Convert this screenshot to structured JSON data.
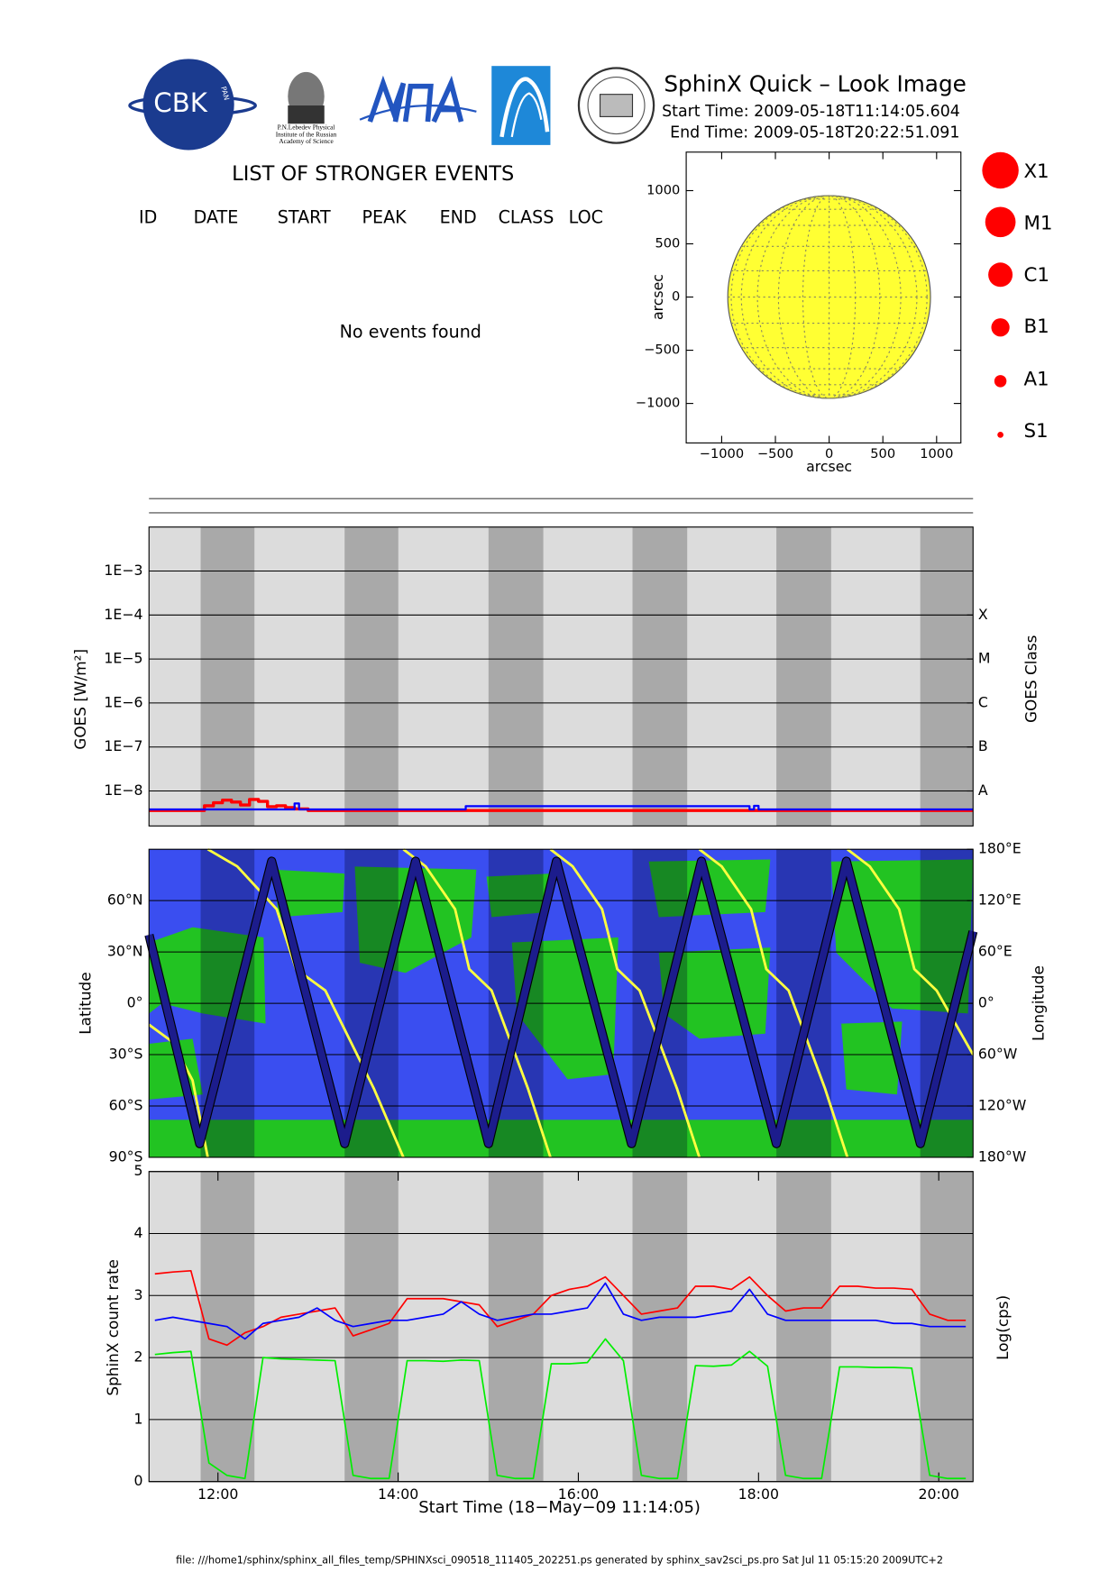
{
  "header": {
    "title": "SphinX Quick – Look Image",
    "start": "Start Time: 2009-05-18T11:14:05.604",
    "end": "End Time: 2009-05-18T20:22:51.091"
  },
  "logos": {
    "cbk": "CBK",
    "pan": "PAN",
    "lebedev": [
      "P.N.Lebedev Physical",
      "Institute of the Russian",
      "Academy of Science"
    ]
  },
  "events": {
    "title": "LIST OF STRONGER EVENTS",
    "columns": [
      "ID",
      "DATE",
      "START",
      "PEAK",
      "END",
      "CLASS",
      "LOC"
    ],
    "message": "No events found"
  },
  "flare_classes": [
    "X1",
    "M1",
    "C1",
    "B1",
    "A1",
    "S1"
  ],
  "footer": "file: ///home1/sphinx/sphinx_all_files_temp/SPHINXsci_090518_111405_202251.ps generated by sphinx_sav2sci_ps.pro Sat Jul 11 05:15:20 2009UTC+2",
  "chart_data": [
    {
      "type": "image",
      "xlabel": "arcsec",
      "ylabel": "arcsec",
      "xlim": [
        -1330,
        1226
      ],
      "ylim": [
        -1371,
        1362
      ],
      "xticks": [
        {
          "value": -1000,
          "label": "−1000"
        },
        {
          "value": -500,
          "label": "−500"
        },
        0,
        500,
        1000
      ],
      "yticks": [
        {
          "value": -1000,
          "label": "−1000"
        },
        {
          "value": -500,
          "label": "−500"
        },
        0,
        500,
        1000
      ]
    },
    {
      "type": "line",
      "ylabel": "GOES [W/m²]",
      "y2label": "GOES Class",
      "log_y": true,
      "grid": true,
      "step": true,
      "background": "#dcdcdc",
      "shade_color": "#a9a9a9",
      "xlim": [
        11.2347,
        20.3808
      ],
      "ylim": [
        1.6e-09,
        0.01
      ],
      "y2lim": [
        1.6e-09,
        0.01
      ],
      "shaded": [
        [
          11.808,
          12.405
        ],
        [
          13.406,
          14.002
        ],
        [
          15.003,
          15.611
        ],
        [
          16.601,
          17.208
        ],
        [
          18.198,
          18.806
        ],
        [
          19.795,
          20.381
        ]
      ],
      "yticks": [
        {
          "value": 0.001,
          "label": "1E−3"
        },
        {
          "value": 0.0001,
          "label": "1E−4"
        },
        {
          "value": 1e-05,
          "label": "1E−5"
        },
        {
          "value": 1e-06,
          "label": "1E−6"
        },
        {
          "value": 1e-07,
          "label": "1E−7"
        },
        {
          "value": 1e-08,
          "label": "1E−8"
        }
      ],
      "y2ticks": [
        {
          "value": 0.0001,
          "label": "X"
        },
        {
          "value": 1e-05,
          "label": "M"
        },
        {
          "value": 1e-06,
          "label": "C"
        },
        {
          "value": 1e-07,
          "label": "B"
        },
        {
          "value": 1e-08,
          "label": "A"
        }
      ],
      "series": [
        {
          "color": "#ff0000",
          "width": 3,
          "x": [
            11.235,
            11.85,
            11.95,
            12.05,
            12.15,
            12.25,
            12.35,
            12.45,
            12.55,
            12.65,
            12.75,
            12.85,
            13.0,
            20.381
          ],
          "values": [
            3.6e-09,
            4.6e-09,
            5.4e-09,
            6.2e-09,
            5.6e-09,
            4.8e-09,
            6.4e-09,
            5.8e-09,
            4.4e-09,
            4.6e-09,
            4.2e-09,
            3.9e-09,
            3.6e-09,
            3.6e-09
          ]
        },
        {
          "color": "#0000ff",
          "width": 2,
          "x": [
            11.235,
            12.8,
            12.85,
            12.9,
            14.7,
            14.75,
            17.9,
            17.95,
            18.0,
            20.381
          ],
          "values": [
            3.8e-09,
            3.8e-09,
            5.2e-09,
            3.8e-09,
            3.8e-09,
            4.5e-09,
            3.8e-09,
            4.6e-09,
            3.8e-09,
            3.8e-09
          ]
        }
      ]
    },
    {
      "type": "line",
      "ylabel": "Latitude",
      "y2label": "Longitude",
      "grid": true,
      "background": "#3a4ef0",
      "shade_color": "rgba(0,0,40,0.3)",
      "xlim": [
        11.2347,
        20.3808
      ],
      "ylim": [
        -90,
        90
      ],
      "y2lim": [
        -180,
        180
      ],
      "shaded": [
        [
          11.808,
          12.405
        ],
        [
          13.406,
          14.002
        ],
        [
          15.003,
          15.611
        ],
        [
          16.601,
          17.208
        ],
        [
          18.198,
          18.806
        ],
        [
          19.795,
          20.381
        ]
      ],
      "yticks": [
        {
          "value": 60,
          "label": "60°N"
        },
        {
          "value": 30,
          "label": "30°N"
        },
        {
          "value": 0,
          "label": "0°"
        },
        {
          "value": -30,
          "label": "30°S"
        },
        {
          "value": -60,
          "label": "60°S"
        },
        {
          "value": -90,
          "label": "90°S"
        }
      ],
      "y2ticks": [
        {
          "value": 180,
          "label": "180°E"
        },
        {
          "value": 120,
          "label": "120°E"
        },
        {
          "value": 60,
          "label": "60°E"
        },
        {
          "value": 0,
          "label": "0°"
        },
        {
          "value": -60,
          "label": "60°W"
        },
        {
          "value": -120,
          "label": "120°W"
        },
        {
          "value": -180,
          "label": "180°W"
        }
      ],
      "series": [
        {
          "color": "#ffff40",
          "width": 2.5,
          "axis": "y2",
          "x": [
            11.235,
            11.493,
            11.718,
            11.887,
            null,
            11.887,
            12.214,
            12.652,
            12.866,
            13.192,
            13.732,
            14.058,
            null,
            14.058,
            14.305,
            14.632,
            14.789,
            15.037,
            15.442,
            15.69,
            null,
            15.69,
            15.937,
            16.263,
            16.432,
            16.68,
            17.096,
            17.343,
            null,
            17.343,
            17.591,
            17.917,
            18.086,
            18.334,
            18.739,
            18.986,
            null,
            18.986,
            19.234,
            19.56,
            19.729,
            19.976,
            20.381
          ],
          "values": [
            -25,
            -45,
            -90,
            -180,
            null,
            180,
            160,
            110,
            40,
            15,
            -100,
            -180,
            null,
            180,
            160,
            110,
            40,
            15,
            -100,
            -180,
            null,
            180,
            160,
            110,
            40,
            15,
            -100,
            -180,
            null,
            180,
            160,
            110,
            40,
            15,
            -100,
            -180,
            null,
            180,
            160,
            110,
            40,
            15,
            -60
          ]
        },
        {
          "color": "#1c1c8c",
          "width": 7,
          "outline": "#000000",
          "x": [
            11.235,
            11.797,
            12.596,
            13.406,
            14.193,
            15.003,
            15.757,
            16.59,
            17.366,
            18.198,
            18.975,
            19.796,
            20.381
          ],
          "values": [
            40,
            -82,
            83,
            -82,
            83,
            -82,
            83,
            -82,
            83,
            -82,
            83,
            -82,
            42
          ]
        }
      ]
    },
    {
      "type": "line",
      "ylabel": "SphinX count rate",
      "y2label": "Log(cps)",
      "xlabel": "Start Time (18−May−09 11:14:05)",
      "grid": true,
      "background": "#dcdcdc",
      "shade_color": "#a9a9a9",
      "xlim": [
        11.2347,
        20.3808
      ],
      "ylim": [
        0,
        5
      ],
      "shaded": [
        [
          11.808,
          12.405
        ],
        [
          13.406,
          14.002
        ],
        [
          15.003,
          15.611
        ],
        [
          16.601,
          17.208
        ],
        [
          18.198,
          18.806
        ],
        [
          19.795,
          20.381
        ]
      ],
      "yticks": [
        0,
        1,
        2,
        3,
        4,
        5
      ],
      "xticks": [
        {
          "value": 12,
          "label": "12:00"
        },
        {
          "value": 14,
          "label": "14:00"
        },
        {
          "value": 16,
          "label": "16:00"
        },
        {
          "value": 18,
          "label": "18:00"
        },
        {
          "value": 20,
          "label": "20:00"
        }
      ],
      "x": [
        11.3,
        11.5,
        11.7,
        11.9,
        12.1,
        12.3,
        12.5,
        12.7,
        12.9,
        13.1,
        13.3,
        13.5,
        13.7,
        13.9,
        14.1,
        14.3,
        14.5,
        14.7,
        14.9,
        15.1,
        15.3,
        15.5,
        15.7,
        15.9,
        16.1,
        16.3,
        16.5,
        16.7,
        16.9,
        17.1,
        17.3,
        17.5,
        17.7,
        17.9,
        18.1,
        18.3,
        18.5,
        18.7,
        18.9,
        19.1,
        19.3,
        19.5,
        19.7,
        19.9,
        20.1,
        20.3
      ],
      "series": [
        {
          "color": "#00ee00",
          "width": 1.5,
          "values": [
            2.05,
            2.08,
            2.1,
            0.3,
            0.1,
            0.05,
            2.0,
            1.98,
            1.97,
            1.96,
            1.95,
            0.1,
            0.05,
            0.05,
            1.95,
            1.95,
            1.94,
            1.96,
            1.95,
            0.1,
            0.05,
            0.05,
            1.9,
            1.9,
            1.92,
            2.3,
            1.95,
            0.1,
            0.05,
            0.05,
            1.87,
            1.86,
            1.88,
            2.1,
            1.86,
            0.1,
            0.05,
            0.05,
            1.85,
            1.85,
            1.84,
            1.84,
            1.83,
            0.1,
            0.05,
            0.05
          ]
        },
        {
          "color": "#ff0000",
          "width": 1.5,
          "values": [
            3.35,
            3.38,
            3.4,
            2.3,
            2.2,
            2.4,
            2.5,
            2.65,
            2.7,
            2.75,
            2.8,
            2.35,
            2.45,
            2.55,
            2.95,
            2.95,
            2.95,
            2.9,
            2.85,
            2.5,
            2.6,
            2.7,
            3.0,
            3.1,
            3.15,
            3.3,
            3.0,
            2.7,
            2.75,
            2.8,
            3.15,
            3.15,
            3.1,
            3.3,
            3.0,
            2.75,
            2.8,
            2.8,
            3.15,
            3.15,
            3.12,
            3.12,
            3.1,
            2.7,
            2.6,
            2.6
          ]
        },
        {
          "color": "#0000ff",
          "width": 1.5,
          "values": [
            2.6,
            2.65,
            2.6,
            2.55,
            2.5,
            2.3,
            2.55,
            2.6,
            2.65,
            2.8,
            2.6,
            2.5,
            2.55,
            2.6,
            2.6,
            2.65,
            2.7,
            2.9,
            2.7,
            2.6,
            2.65,
            2.7,
            2.7,
            2.75,
            2.8,
            3.2,
            2.7,
            2.6,
            2.65,
            2.65,
            2.65,
            2.7,
            2.75,
            3.1,
            2.7,
            2.6,
            2.6,
            2.6,
            2.6,
            2.6,
            2.6,
            2.55,
            2.55,
            2.5,
            2.5,
            2.5
          ]
        }
      ]
    }
  ]
}
